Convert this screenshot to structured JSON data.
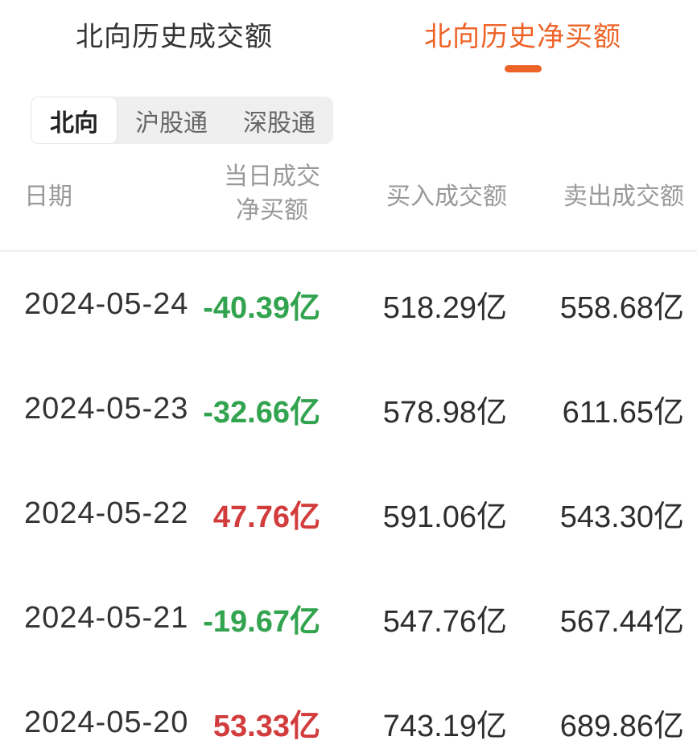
{
  "tabs": [
    {
      "label": "北向历史成交额",
      "active": false
    },
    {
      "label": "北向历史净买额",
      "active": true
    }
  ],
  "segments": [
    {
      "label": "北向",
      "selected": true
    },
    {
      "label": "沪股通",
      "selected": false
    },
    {
      "label": "深股通",
      "selected": false
    }
  ],
  "table": {
    "headers": {
      "date": "日期",
      "net_line1": "当日成交",
      "net_line2": "净买额",
      "buy": "买入成交额",
      "sell": "卖出成交额"
    },
    "rows": [
      {
        "date": "2024-05-24",
        "net": "-40.39亿",
        "dir": "down",
        "buy": "518.29亿",
        "sell": "558.68亿"
      },
      {
        "date": "2024-05-23",
        "net": "-32.66亿",
        "dir": "down",
        "buy": "578.98亿",
        "sell": "611.65亿"
      },
      {
        "date": "2024-05-22",
        "net": "47.76亿",
        "dir": "up",
        "buy": "591.06亿",
        "sell": "543.30亿"
      },
      {
        "date": "2024-05-21",
        "net": "-19.67亿",
        "dir": "down",
        "buy": "547.76亿",
        "sell": "567.44亿"
      },
      {
        "date": "2024-05-20",
        "net": "53.33亿",
        "dir": "up",
        "buy": "743.19亿",
        "sell": "689.86亿"
      }
    ]
  },
  "colors": {
    "accent_orange": "#EE6428",
    "negative_green": "#32A34E",
    "positive_red": "#D23C3C"
  }
}
